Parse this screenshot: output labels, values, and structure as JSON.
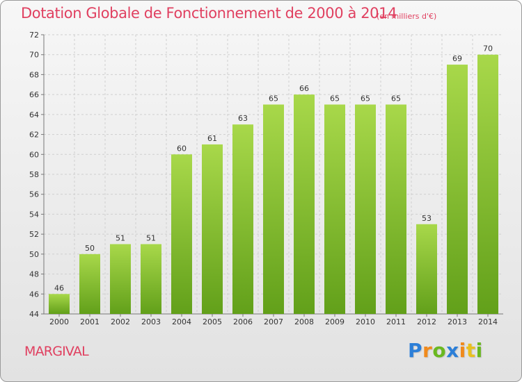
{
  "title": "Dotation Globale de Fonctionnement de 2000 à 2014",
  "unit_note": "(en milliers d'€)",
  "commune": "MARGIVAL",
  "logo": {
    "text": "Proxiti",
    "letters": [
      {
        "ch": "P",
        "color": "#2c7fd8"
      },
      {
        "ch": "r",
        "color": "#f08a1c"
      },
      {
        "ch": "o",
        "color": "#6ab820"
      },
      {
        "ch": "x",
        "color": "#2c7fd8"
      },
      {
        "ch": "i",
        "color": "#f08a1c"
      },
      {
        "ch": "t",
        "color": "#e8c020"
      },
      {
        "ch": "i",
        "color": "#6ab820"
      }
    ]
  },
  "colors": {
    "text_accent": "#e04060",
    "bar_top": "#a8d84a",
    "bar_bottom": "#62a01a",
    "grid": "#cfcfcf"
  },
  "chart_data": {
    "type": "bar",
    "title": "Dotation Globale de Fonctionnement de 2000 à 2014",
    "subtitle": "(en milliers d'€)",
    "xlabel": "",
    "ylabel": "",
    "categories": [
      "2000",
      "2001",
      "2002",
      "2003",
      "2004",
      "2005",
      "2006",
      "2007",
      "2008",
      "2009",
      "2010",
      "2011",
      "2012",
      "2013",
      "2014"
    ],
    "values": [
      46,
      50,
      51,
      51,
      60,
      61,
      63,
      65,
      66,
      65,
      65,
      65,
      53,
      69,
      70
    ],
    "ylim": [
      44,
      72
    ],
    "yticks": [
      44,
      46,
      48,
      50,
      52,
      54,
      56,
      58,
      60,
      62,
      64,
      66,
      68,
      70,
      72
    ],
    "grid": true,
    "legend": "none"
  }
}
